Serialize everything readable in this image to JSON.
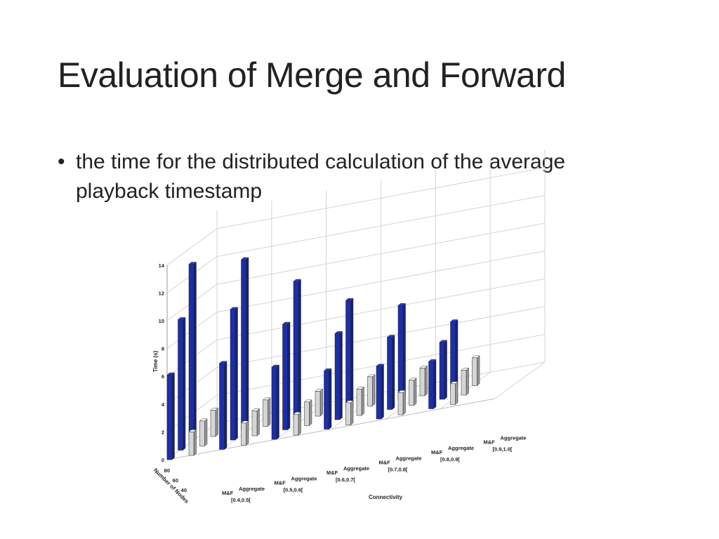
{
  "slide": {
    "title": "Evaluation of Merge and Forward",
    "bullets": [
      "the time for the distributed calculation of the average playback timestamp"
    ],
    "bullet_marker": "•"
  },
  "colors": {
    "mf_bar": "#1c2fa8",
    "aggregate_bar": "#d6d6d6",
    "grid": "#d4d4d4"
  },
  "chart_data": {
    "type": "bar",
    "projection": "3d",
    "title": "",
    "ylabel": "Time (s)",
    "xlabel": "Connectivity",
    "zlabel": "Number of Nodes",
    "ylim": [
      0,
      14
    ],
    "yticks": [
      "0",
      "2",
      "4",
      "6",
      "8",
      "10",
      "12",
      "14"
    ],
    "node_ticks": [
      "80",
      "60",
      "40"
    ],
    "nodes": [
      80,
      60,
      40
    ],
    "methods": [
      "M&F",
      "Aggregate"
    ],
    "categories": [
      "[0.4,0.5[",
      "[0.5,0.6[",
      "[0.6,0.7[",
      "[0.7,0.8[",
      "[0.8,0.9[",
      "[0.9,1.0["
    ],
    "series": [
      {
        "name": "M&F",
        "values": {
          "80": [
            12.7,
            12.3,
            10.0,
            7.9,
            6.8,
            4.9
          ],
          "60": [
            9.4,
            9.4,
            7.6,
            6.2,
            5.2,
            4.1
          ],
          "40": [
            6.1,
            6.2,
            5.2,
            4.2,
            3.8,
            3.4
          ]
        }
      },
      {
        "name": "Aggregate",
        "values": {
          "80": [
            1.9,
            1.9,
            1.8,
            2.1,
            2.0,
            2.0
          ],
          "60": [
            1.8,
            1.8,
            1.7,
            1.9,
            1.8,
            1.8
          ],
          "40": [
            1.7,
            1.6,
            1.5,
            1.6,
            1.6,
            1.5
          ]
        }
      }
    ]
  }
}
